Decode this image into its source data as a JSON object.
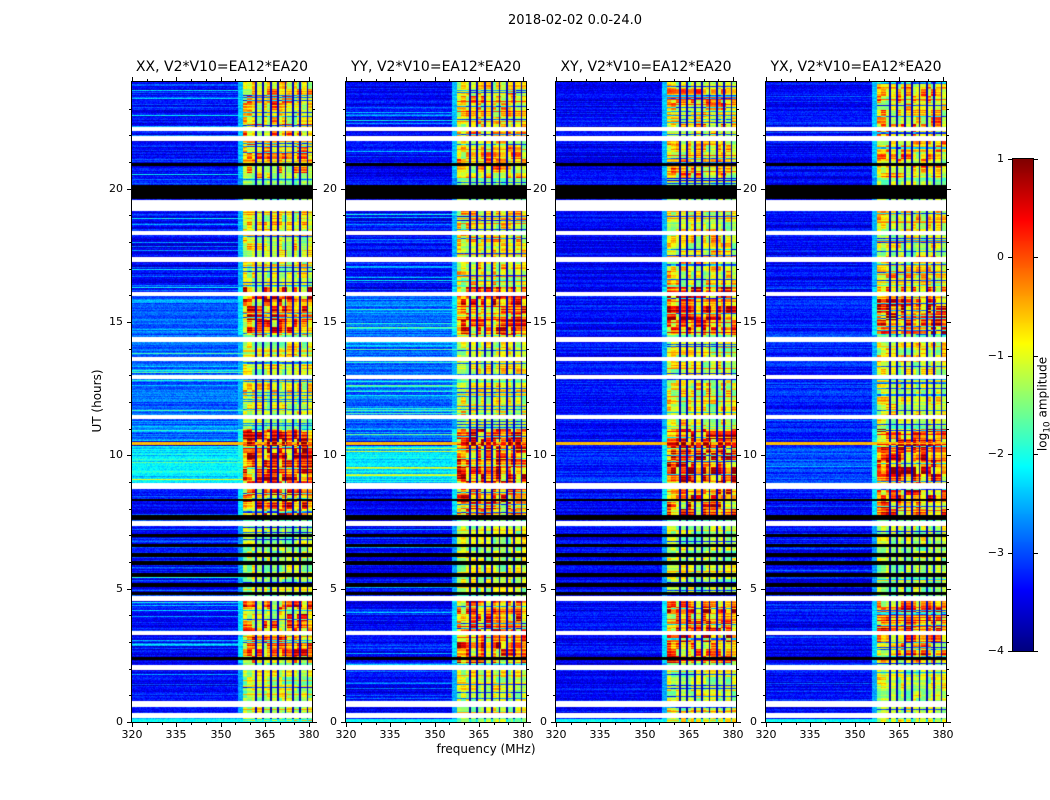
{
  "chart_data": {
    "type": "heatmap",
    "title": "2018-02-02 0.0-24.0",
    "xlabel": "frequency (MHz)",
    "ylabel": "UT (hours)",
    "x_range_mhz": [
      320,
      381
    ],
    "y_range_ut": [
      0,
      24
    ],
    "x_ticks": [
      320,
      335,
      350,
      365,
      380
    ],
    "y_ticks": [
      0,
      5,
      10,
      15,
      20
    ],
    "panels": [
      {
        "title": "XX, V2*V10=EA12*EA20",
        "pol": "XX",
        "bg_stripe_factor": 1.0,
        "seed": 11
      },
      {
        "title": "YY, V2*V10=EA12*EA20",
        "pol": "YY",
        "bg_stripe_factor": 1.0,
        "seed": 22
      },
      {
        "title": "XY, V2*V10=EA12*EA20",
        "pol": "XY",
        "bg_stripe_factor": 0.15,
        "seed": 33
      },
      {
        "title": "YX, V2*V10=EA12*EA20",
        "pol": "YX",
        "bg_stripe_factor": 0.3,
        "seed": 44
      }
    ],
    "colorbar": {
      "label_prefix": "log",
      "label_sub": "10",
      "label_suffix": " amplitude",
      "ticks": [
        1,
        0,
        -1,
        -2,
        -3,
        -4
      ],
      "range": [
        -4,
        1
      ],
      "colormap": "jet"
    },
    "features": {
      "noise_floor_log": -3.4,
      "rfi_band_mhz": [
        357.5,
        381
      ],
      "rfi_subchannel_gap_mhz": [
        362,
        364.5,
        367,
        369.5,
        372,
        374.5,
        377,
        379.5
      ],
      "rfi_active_ut": [
        [
          0.0,
          2.1,
          0.45
        ],
        [
          2.2,
          4.7,
          0.8
        ],
        [
          4.8,
          7.5,
          0.4
        ],
        [
          7.7,
          9.0,
          0.85
        ],
        [
          9.0,
          11.0,
          1.0
        ],
        [
          11.1,
          14.4,
          0.5
        ],
        [
          14.5,
          16.3,
          0.9
        ],
        [
          16.4,
          19.2,
          0.55
        ],
        [
          19.3,
          20.3,
          0.35
        ],
        [
          20.4,
          24.0,
          0.65
        ]
      ],
      "data_gaps_ut": [
        [
          0.15,
          0.32
        ],
        [
          0.55,
          0.78
        ],
        [
          1.95,
          2.15
        ],
        [
          3.28,
          3.42
        ],
        [
          4.55,
          4.72
        ],
        [
          7.35,
          7.55
        ],
        [
          8.75,
          8.95
        ],
        [
          11.35,
          11.52
        ],
        [
          12.85,
          13.02
        ],
        [
          13.55,
          13.68
        ],
        [
          14.25,
          14.42
        ],
        [
          15.98,
          16.12
        ],
        [
          17.25,
          17.42
        ],
        [
          18.28,
          18.42
        ],
        [
          19.18,
          19.58
        ],
        [
          21.78,
          21.97
        ],
        [
          22.15,
          22.32
        ]
      ],
      "flagged_black_ut": [
        [
          2.32,
          2.42
        ],
        [
          4.78,
          4.88
        ],
        [
          5.05,
          5.2
        ],
        [
          5.45,
          5.6
        ],
        [
          5.9,
          6.05
        ],
        [
          6.2,
          6.35
        ],
        [
          6.55,
          6.68
        ],
        [
          6.95,
          7.05
        ],
        [
          7.58,
          7.78
        ],
        [
          8.28,
          8.38
        ],
        [
          19.62,
          20.12
        ],
        [
          20.85,
          20.95
        ]
      ],
      "bright_row_ut": 10.45,
      "cyan_background_ut": [
        [
          8.85,
          10.35,
          1.0
        ],
        [
          10.55,
          16.0,
          0.45
        ]
      ]
    }
  }
}
